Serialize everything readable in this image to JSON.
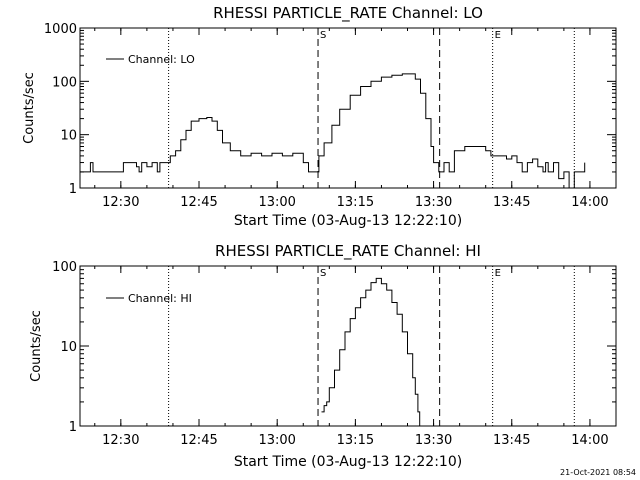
{
  "footer_timestamp": "21-Oct-2021 08:54",
  "chart_data": [
    {
      "type": "line",
      "title": "RHESSI PARTICLE_RATE Channel: LO",
      "xlabel": "Start Time (03-Aug-13 12:22:10)",
      "ylabel": "Counts/sec",
      "yscale": "log",
      "ylim": [
        1,
        1000
      ],
      "xlim": [
        "12:22:10",
        "14:05:00"
      ],
      "xticks": [
        "12:30",
        "12:45",
        "13:00",
        "13:15",
        "13:30",
        "13:45",
        "14:00"
      ],
      "yticks": [
        "1",
        "10",
        "100",
        "1000"
      ],
      "legend": "Channel: LO",
      "legend_position": "top-left",
      "marker_lines": [
        {
          "time": "12:39:10",
          "style": "dotted",
          "label": ""
        },
        {
          "time": "13:07:50",
          "style": "dashed",
          "label": "S"
        },
        {
          "time": "13:31:10",
          "style": "dashed",
          "label": ""
        },
        {
          "time": "13:41:20",
          "style": "dotted",
          "label": "E"
        },
        {
          "time": "13:57:00",
          "style": "dotted",
          "label": ""
        }
      ],
      "series": [
        {
          "points": [
            [
              "12:22:10",
              2
            ],
            [
              "12:24:00",
              2
            ],
            [
              "12:24:10",
              3
            ],
            [
              "12:24:40",
              2
            ],
            [
              "12:30:00",
              2
            ],
            [
              "12:30:30",
              3
            ],
            [
              "12:32:00",
              3
            ],
            [
              "12:33:00",
              2.5
            ],
            [
              "12:33:30",
              2
            ],
            [
              "12:34:00",
              3
            ],
            [
              "12:35:00",
              2.5
            ],
            [
              "12:36:00",
              3
            ],
            [
              "12:37:00",
              2
            ],
            [
              "12:37:30",
              3
            ],
            [
              "12:39:00",
              3
            ],
            [
              "12:39:30",
              4
            ],
            [
              "12:40:30",
              5
            ],
            [
              "12:41:30",
              8
            ],
            [
              "12:42:30",
              12
            ],
            [
              "12:43:30",
              18
            ],
            [
              "12:45:00",
              20
            ],
            [
              "12:46:30",
              21
            ],
            [
              "12:47:30",
              18
            ],
            [
              "12:48:30",
              12
            ],
            [
              "12:49:30",
              7
            ],
            [
              "12:51:00",
              5
            ],
            [
              "12:53:00",
              4
            ],
            [
              "12:55:00",
              4.5
            ],
            [
              "12:57:00",
              4
            ],
            [
              "12:59:00",
              4.5
            ],
            [
              "13:01:00",
              4
            ],
            [
              "13:03:00",
              4.5
            ],
            [
              "13:05:00",
              3
            ],
            [
              "13:06:00",
              2
            ],
            [
              "13:07:30",
              2
            ],
            [
              "13:08:00",
              4
            ],
            [
              "13:09:00",
              7
            ],
            [
              "13:10:30",
              15
            ],
            [
              "13:12:00",
              30
            ],
            [
              "13:14:00",
              55
            ],
            [
              "13:16:00",
              80
            ],
            [
              "13:18:00",
              100
            ],
            [
              "13:20:00",
              120
            ],
            [
              "13:22:00",
              130
            ],
            [
              "13:24:00",
              138
            ],
            [
              "13:25:30",
              138
            ],
            [
              "13:26:30",
              110
            ],
            [
              "13:27:30",
              60
            ],
            [
              "13:28:30",
              20
            ],
            [
              "13:29:30",
              6
            ],
            [
              "13:30:00",
              3
            ],
            [
              "13:31:00",
              2
            ],
            [
              "13:32:00",
              3
            ],
            [
              "13:33:00",
              2
            ],
            [
              "13:34:00",
              5
            ],
            [
              "13:36:00",
              6
            ],
            [
              "13:39:00",
              6
            ],
            [
              "13:40:00",
              5
            ],
            [
              "13:41:00",
              4
            ],
            [
              "13:42:00",
              4
            ],
            [
              "13:43:00",
              4
            ],
            [
              "13:44:00",
              3.5
            ],
            [
              "13:45:00",
              4
            ],
            [
              "13:46:00",
              3
            ],
            [
              "13:47:00",
              2
            ],
            [
              "13:48:00",
              3
            ],
            [
              "13:49:00",
              3.5
            ],
            [
              "13:50:00",
              2.5
            ],
            [
              "13:51:00",
              2
            ],
            [
              "13:51:30",
              3
            ],
            [
              "13:52:00",
              2
            ],
            [
              "13:53:00",
              3
            ],
            [
              "13:54:00",
              1.5
            ],
            [
              "13:55:00",
              2
            ],
            [
              "13:56:00",
              1
            ],
            [
              "13:57:00",
              2
            ],
            [
              "13:58:00",
              2
            ],
            [
              "13:59:00",
              3
            ]
          ]
        }
      ]
    },
    {
      "type": "line",
      "title": "RHESSI PARTICLE_RATE Channel: HI",
      "xlabel": "Start Time (03-Aug-13 12:22:10)",
      "ylabel": "Counts/sec",
      "yscale": "log",
      "ylim": [
        1,
        100
      ],
      "xlim": [
        "12:22:10",
        "14:05:00"
      ],
      "xticks": [
        "12:30",
        "12:45",
        "13:00",
        "13:15",
        "13:30",
        "13:45",
        "14:00"
      ],
      "yticks": [
        "1",
        "10",
        "100"
      ],
      "legend": "Channel: HI",
      "legend_position": "top-left",
      "marker_lines": [
        {
          "time": "12:39:10",
          "style": "dotted",
          "label": ""
        },
        {
          "time": "13:07:50",
          "style": "dashed",
          "label": "S"
        },
        {
          "time": "13:31:10",
          "style": "dashed",
          "label": ""
        },
        {
          "time": "13:41:20",
          "style": "dotted",
          "label": "E"
        },
        {
          "time": "13:57:00",
          "style": "dotted",
          "label": ""
        }
      ],
      "series": [
        {
          "points": [
            [
              "13:08:30",
              1.5
            ],
            [
              "13:09:00",
              1.8
            ],
            [
              "13:09:30",
              2
            ],
            [
              "13:10:00",
              3
            ],
            [
              "13:11:00",
              5
            ],
            [
              "13:12:00",
              9
            ],
            [
              "13:13:00",
              15
            ],
            [
              "13:14:00",
              22
            ],
            [
              "13:15:00",
              30
            ],
            [
              "13:16:00",
              40
            ],
            [
              "13:17:00",
              50
            ],
            [
              "13:18:00",
              62
            ],
            [
              "13:19:00",
              70
            ],
            [
              "13:20:00",
              60
            ],
            [
              "13:21:00",
              50
            ],
            [
              "13:22:00",
              35
            ],
            [
              "13:23:00",
              25
            ],
            [
              "13:24:00",
              15
            ],
            [
              "13:25:00",
              8
            ],
            [
              "13:26:00",
              4
            ],
            [
              "13:26:30",
              2.5
            ],
            [
              "13:27:00",
              1.5
            ],
            [
              "13:27:20",
              1
            ]
          ]
        }
      ]
    }
  ]
}
